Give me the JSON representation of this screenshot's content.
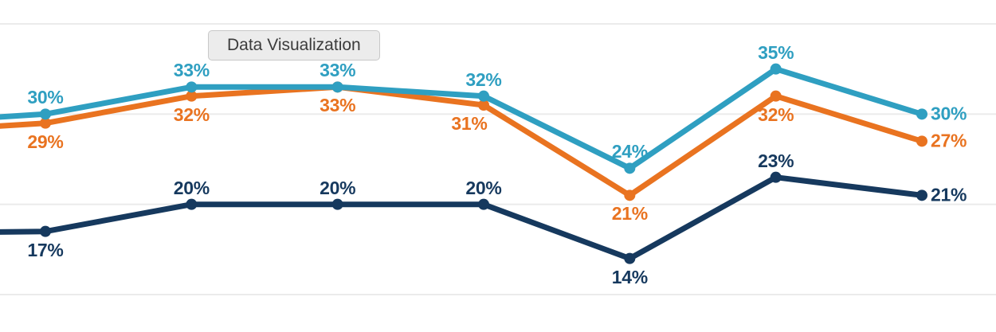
{
  "tooltip": {
    "text": "Data Visualization"
  },
  "colors": {
    "background": "#ffffff",
    "gridline": "#ebebeb",
    "teal": "#2f9fc1",
    "orange": "#e97320",
    "navy": "#16395e"
  },
  "chart_data": {
    "type": "line",
    "title": "",
    "xlabel": "",
    "ylabel": "",
    "x_tick_labels": [],
    "ylim": [
      10,
      40
    ],
    "y_gridlines": [
      40,
      30,
      20,
      10
    ],
    "grid": "horizontal-only",
    "legend": "none",
    "unit": "%",
    "note_left_edge": "lines continue off the left edge of the frame",
    "series": [
      {
        "name": "teal-series",
        "color": "#2f9fc1",
        "values": [
          30,
          33,
          33,
          32,
          24,
          35,
          30
        ],
        "lead_in_value": 29,
        "labels": [
          "30%",
          "33%",
          "33%",
          "32%",
          "24%",
          "35%",
          "30%"
        ],
        "label_placements": [
          "above",
          "above",
          "above",
          "above",
          "above",
          "above",
          "right"
        ],
        "label_dx": [
          0,
          0,
          0,
          0,
          0,
          0,
          0
        ]
      },
      {
        "name": "orange-series",
        "color": "#e97320",
        "values": [
          29,
          32,
          33,
          31,
          21,
          32,
          27
        ],
        "lead_in_value": 28,
        "labels": [
          "29%",
          "32%",
          "33%",
          "31%",
          "21%",
          "32%",
          "27%"
        ],
        "label_placements": [
          "below",
          "below",
          "below",
          "below",
          "below",
          "below",
          "right"
        ],
        "label_dx": [
          0,
          0,
          0,
          -18,
          0,
          0,
          0
        ]
      },
      {
        "name": "navy-series",
        "color": "#16395e",
        "values": [
          17,
          20,
          20,
          20,
          14,
          23,
          21
        ],
        "lead_in_value": 16.8,
        "labels": [
          "17%",
          "20%",
          "20%",
          "20%",
          "14%",
          "23%",
          "21%"
        ],
        "label_placements": [
          "below",
          "above",
          "above",
          "above",
          "below",
          "above",
          "right"
        ],
        "label_dx": [
          0,
          0,
          0,
          0,
          0,
          0,
          0
        ]
      }
    ]
  }
}
